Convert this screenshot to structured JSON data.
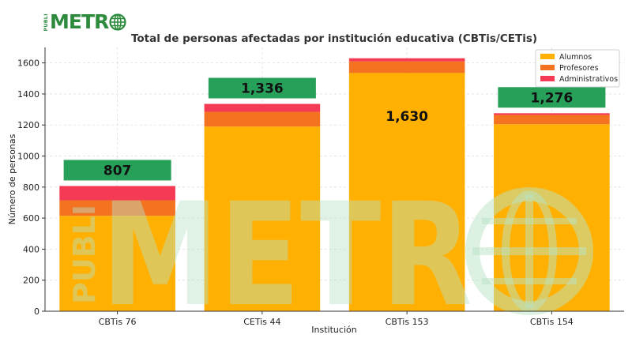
{
  "brand": {
    "publi": "PUBLI",
    "metro": "METR",
    "logo_color": "#2e8b3e",
    "watermark_color": "#b9e3c6"
  },
  "chart_data": {
    "type": "bar",
    "stacked": true,
    "title": "Total de personas afectadas por institución educativa (CBTis/CETis)",
    "xlabel": "Institución",
    "ylabel": "Número de personas",
    "ylim": [
      0,
      1700
    ],
    "yticks": [
      0,
      200,
      400,
      600,
      800,
      1000,
      1200,
      1400,
      1600
    ],
    "grid": true,
    "legend_position": "top-right",
    "categories": [
      "CBTis 76",
      "CETis 44",
      "CBTis 153",
      "CBTis 154"
    ],
    "series": [
      {
        "name": "Alumnos",
        "color": "#ffb000",
        "values": [
          615,
          1190,
          1535,
          1205
        ]
      },
      {
        "name": "Profesores",
        "color": "#f47320",
        "values": [
          100,
          95,
          75,
          60
        ]
      },
      {
        "name": "Administrativos",
        "color": "#f53a55",
        "values": [
          92,
          51,
          20,
          11
        ]
      }
    ],
    "totals": [
      807,
      1336,
      1630,
      1276
    ],
    "total_labels": [
      "807",
      "1,336",
      "1,630",
      "1,276"
    ],
    "total_box_color": "#27a05a"
  }
}
